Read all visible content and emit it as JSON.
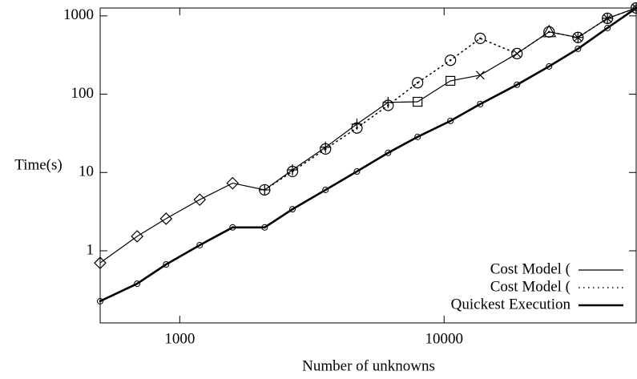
{
  "chart_data": {
    "type": "line",
    "x_label": "Number of unknowns",
    "y_label": "Time(s)",
    "xscale": "log",
    "yscale": "log",
    "xlim": [
      500,
      53300
    ],
    "ylim": [
      0.12,
      1260
    ],
    "xticks": [
      1000,
      10000
    ],
    "yticks": [
      1,
      10,
      100,
      1000
    ],
    "legend": "lower right",
    "x": [
      500,
      690,
      888,
      1190,
      1585,
      2095,
      2670,
      3560,
      4680,
      6140,
      7940,
      10570,
      13700,
      18870,
      24950,
      32100,
      41500,
      53300
    ],
    "series": [
      {
        "name": "Cost Model (",
        "color": "#000000",
        "style": "solid",
        "width": 1.2,
        "markers": [
          "diamond",
          "diamond",
          "diamond",
          "diamond",
          "diamond",
          "plus",
          "plus",
          "plus",
          "plus",
          "plus",
          "square",
          "square",
          "cross",
          "cross",
          "triangle",
          "star",
          "star",
          "star"
        ],
        "values": [
          0.7,
          1.53,
          2.57,
          4.5,
          7.3,
          6.0,
          10.8,
          21,
          41.5,
          78.5,
          80,
          148,
          175,
          330,
          624,
          530,
          930,
          1260
        ]
      },
      {
        "name": "Cost Model (",
        "color": "#000000",
        "style": "dotted",
        "width": 1.5,
        "marker": "circle",
        "values": [
          null,
          null,
          null,
          null,
          null,
          6.0,
          10.3,
          20,
          37,
          72,
          140,
          271,
          516,
          330,
          624,
          530,
          930,
          1260
        ]
      },
      {
        "name": "Quickest Execution",
        "color": "#000000",
        "style": "solid",
        "width": 2.6,
        "marker": "dot-circle",
        "values": [
          0.227,
          0.38,
          0.67,
          1.18,
          1.99,
          1.99,
          3.4,
          6.0,
          10.3,
          17.8,
          28.5,
          45.6,
          74.8,
          132,
          226,
          380,
          700,
          1260
        ]
      }
    ]
  }
}
